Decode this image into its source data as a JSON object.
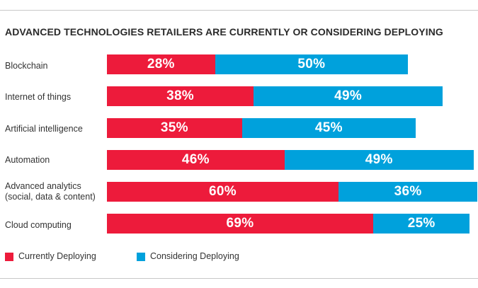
{
  "chart_data": {
    "type": "bar",
    "orientation": "horizontal",
    "stacked": true,
    "title": "ADVANCED TECHNOLOGIES RETAILERS ARE CURRENTLY OR CONSIDERING DEPLOYING",
    "xlabel": "",
    "ylabel": "",
    "unit": "%",
    "categories": [
      "Blockchain",
      "Internet of things",
      "Artificial intelligence",
      "Automation",
      "Advanced analytics (social, data & content)",
      "Cloud computing"
    ],
    "series": [
      {
        "name": "Currently Deploying",
        "color": "#ed1b3b",
        "values": [
          28,
          38,
          35,
          46,
          60,
          69
        ]
      },
      {
        "name": "Considering Deploying",
        "color": "#00a1dc",
        "values": [
          50,
          49,
          45,
          49,
          36,
          25
        ]
      }
    ],
    "value_labels": [
      [
        "28%",
        "38%",
        "35%",
        "46%",
        "60%",
        "69%"
      ],
      [
        "50%",
        "49%",
        "45%",
        "49%",
        "36%",
        "25%"
      ]
    ],
    "legend": {
      "position": "bottom-left",
      "items": [
        "Currently Deploying",
        "Considering Deploying"
      ]
    }
  }
}
